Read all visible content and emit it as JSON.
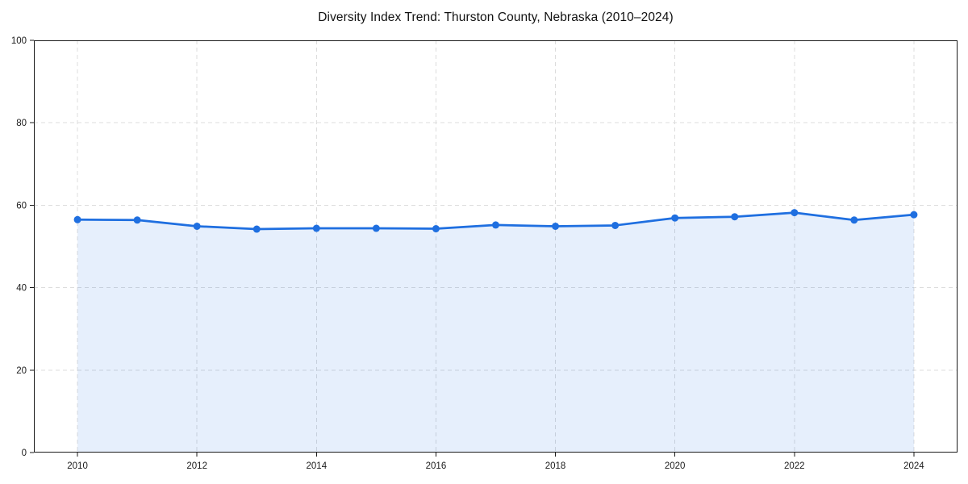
{
  "chart_data": {
    "type": "area",
    "title": "Diversity Index Trend: Thurston County, Nebraska (2010–2024)",
    "series": [
      {
        "name": "Diversity Index",
        "x": [
          2010,
          2011,
          2012,
          2013,
          2014,
          2015,
          2016,
          2017,
          2018,
          2019,
          2020,
          2021,
          2022,
          2023,
          2024
        ],
        "values": [
          56.5,
          56.4,
          54.9,
          54.2,
          54.4,
          54.4,
          54.3,
          55.2,
          54.9,
          55.1,
          56.9,
          57.2,
          58.2,
          56.4,
          57.7
        ]
      }
    ],
    "xlabel": "",
    "ylabel": "",
    "xlim": [
      2009.27,
      2024.73
    ],
    "ylim": [
      0,
      100
    ],
    "xticks": [
      "2010",
      "2012",
      "2014",
      "2016",
      "2018",
      "2020",
      "2022",
      "2024"
    ],
    "xtick_values": [
      2010,
      2012,
      2014,
      2016,
      2018,
      2020,
      2022,
      2024
    ],
    "yticks": [
      "0",
      "20",
      "40",
      "60",
      "80",
      "100"
    ],
    "ytick_values": [
      0,
      20,
      40,
      60,
      80,
      100
    ],
    "grid": "on",
    "grid_style": "dashed",
    "legend_position": "none",
    "colors": {
      "line": "#1f6fe0",
      "marker": "#1f6fe0",
      "fill": "#1f6fe0",
      "fill_opacity": "0.11",
      "grid": "#dcdcdc",
      "spine": "#1a1a1a",
      "tick_label": "#1a1a1a",
      "title": "#111111",
      "background": "#ffffff"
    }
  }
}
